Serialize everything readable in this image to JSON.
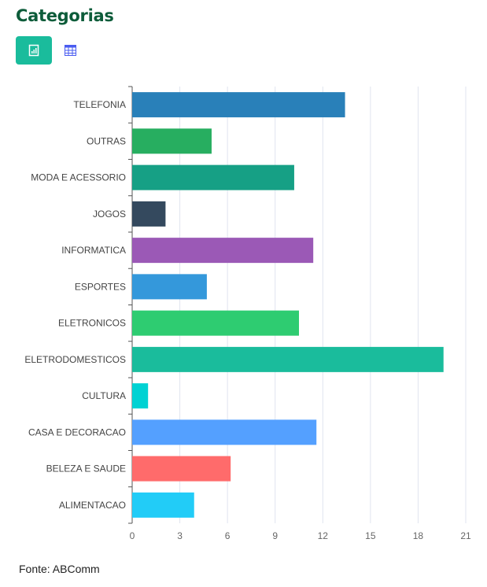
{
  "header": {
    "title": "Categorias",
    "chart_view_icon": "bar-chart-icon",
    "table_view_icon": "table-icon"
  },
  "footer": {
    "source": "Fonte: ABComm"
  },
  "chart_data": {
    "type": "bar",
    "orientation": "horizontal",
    "title": "Categorias",
    "xlabel": "",
    "ylabel": "",
    "categories": [
      "TELEFONIA",
      "OUTRAS",
      "MODA E ACESSORIO",
      "JOGOS",
      "INFORMATICA",
      "ESPORTES",
      "ELETRONICOS",
      "ELETRODOMESTICOS",
      "CULTURA",
      "CASA E DECORACAO",
      "BELEZA E SAUDE",
      "ALIMENTACAO"
    ],
    "values": [
      13.4,
      5.0,
      10.2,
      2.1,
      11.4,
      4.7,
      10.5,
      19.6,
      1.0,
      11.6,
      6.2,
      3.9
    ],
    "colors": [
      "#2980b9",
      "#27ae60",
      "#16a085",
      "#34495e",
      "#9b59b6",
      "#3498db",
      "#2ecc71",
      "#1abc9c",
      "#00d2d3",
      "#54a0ff",
      "#ff6b6b",
      "#22ccf7"
    ],
    "xlim": [
      0,
      21
    ],
    "xticks": [
      0,
      3,
      6,
      9,
      12,
      15,
      18,
      21
    ],
    "grid": true
  }
}
